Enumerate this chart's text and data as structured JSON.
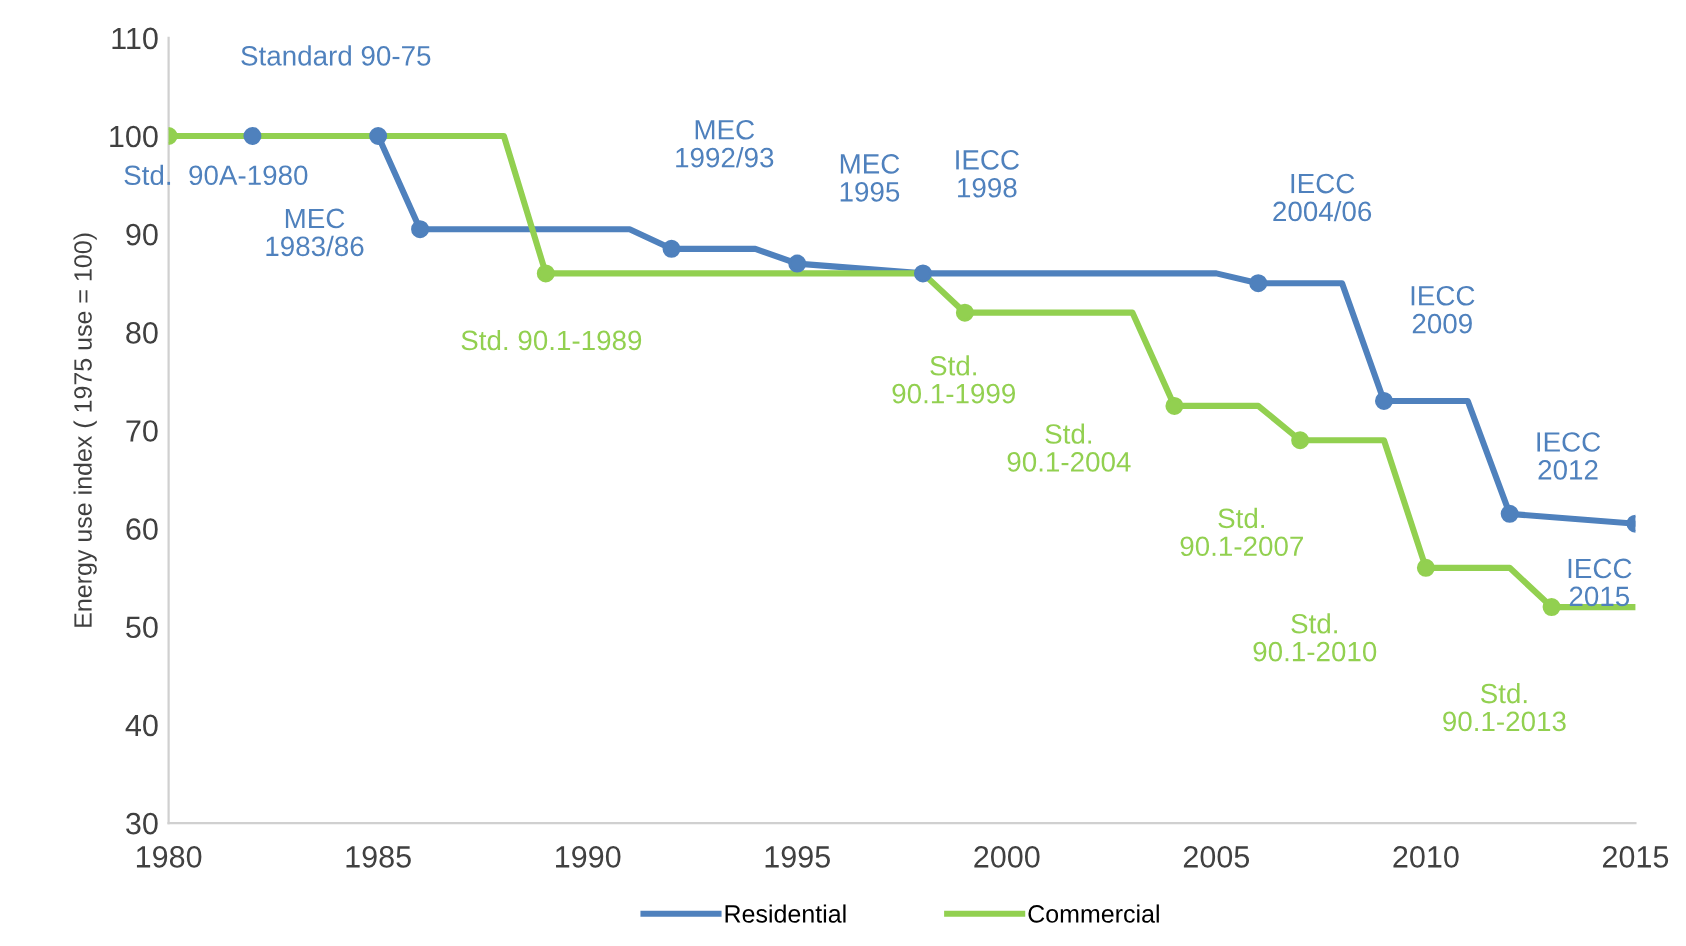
{
  "chart_data": {
    "type": "line",
    "ylabel": "Energy use index ( 1975 use = 100)",
    "xlim": [
      1980,
      2015
    ],
    "xticks": [
      1980,
      1985,
      1990,
      1995,
      2000,
      2005,
      2010,
      2015
    ],
    "ylim": [
      30,
      110
    ],
    "yticks": [
      30,
      40,
      50,
      60,
      70,
      80,
      90,
      100,
      110
    ],
    "grid": false,
    "legend": "bottom",
    "marker": "none",
    "line_style": "solid",
    "series": [
      {
        "name": "Residential",
        "color": "#4f81bd",
        "x": [
          1980,
          1985,
          1986,
          1991,
          1992,
          1994,
          1995,
          1998,
          2005,
          2006,
          2008,
          2009,
          2011,
          2012,
          2015
        ],
        "values": [
          100,
          100,
          90.5,
          90.5,
          88.5,
          88.5,
          87,
          86,
          86,
          85,
          85,
          73,
          73,
          61.5,
          60.5
        ]
      },
      {
        "name": "Commercial",
        "color": "#92d050",
        "x": [
          1980,
          1988,
          1989,
          1998,
          1999,
          2003,
          2004,
          2006,
          2007,
          2009,
          2010,
          2012,
          2013,
          2015
        ],
        "values": [
          100,
          100,
          86,
          86,
          82,
          82,
          72.5,
          72.5,
          69,
          69,
          56,
          56,
          52,
          52
        ]
      },
      {
        "color": "#4f81bd",
        "type": "scatter",
        "marker": "circle",
        "x": [
          1982,
          1985,
          1986,
          1992,
          1995,
          1998,
          2006,
          2009,
          2012,
          2015
        ],
        "values": [
          100,
          100,
          90.5,
          88.5,
          87,
          86,
          85,
          73,
          61.5,
          60.5
        ]
      },
      {
        "color": "#92d050",
        "type": "scatter",
        "marker": "circle",
        "x": [
          1980,
          1989,
          1999,
          2004,
          2007,
          2010,
          2013
        ],
        "values": [
          100,
          86,
          82,
          72.5,
          69,
          56,
          52
        ]
      }
    ],
    "annotations": [
      {
        "text": "Standard 90-75",
        "x": 1982,
        "y": 100
      },
      {
        "text": "Std.  90A-1980",
        "x": 1980,
        "y": 100
      },
      {
        "text": "MEC\n1983/86",
        "x": 1986,
        "y": 90.5
      },
      {
        "text": "Std. 90.1-1989",
        "x": 1989,
        "y": 86
      },
      {
        "text": "MEC\n1992/93",
        "x": 1992,
        "y": 88.5
      },
      {
        "text": "MEC\n1995",
        "x": 1995,
        "y": 87
      },
      {
        "text": "IECC\n1998",
        "x": 1998,
        "y": 86
      },
      {
        "text": "Std.\n90.1-1999",
        "x": 1999,
        "y": 82
      },
      {
        "text": "Std.\n90.1-2004",
        "x": 2004,
        "y": 72.5
      },
      {
        "text": "IECC\n2004/06",
        "x": 2006,
        "y": 85
      },
      {
        "text": "Std.\n90.1-2007",
        "x": 2007,
        "y": 69
      },
      {
        "text": "IECC\n2009",
        "x": 2009,
        "y": 73
      },
      {
        "text": "Std.\n90.1-2010",
        "x": 2010,
        "y": 56
      },
      {
        "text": "IECC\n2012",
        "x": 2012,
        "y": 61.5
      },
      {
        "text": "IECC\n2015",
        "x": 2015,
        "y": 60.5
      },
      {
        "text": "Std.\n90.1-2013",
        "x": 2013,
        "y": 52
      }
    ]
  }
}
